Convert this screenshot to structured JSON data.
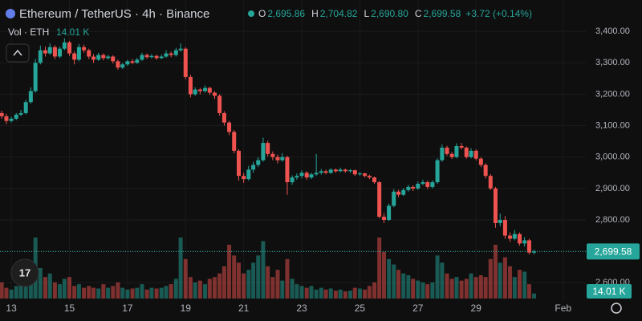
{
  "header": {
    "title": "Ethereum / TetherUS · 4h · Binance",
    "legend": [
      {
        "key": "O",
        "value": "2,695.86"
      },
      {
        "key": "H",
        "value": "2,704.82"
      },
      {
        "key": "L",
        "value": "2,690.80"
      },
      {
        "key": "C",
        "value": "2,699.58"
      }
    ],
    "change": "+3.72 (+0.14%)",
    "volume_title": "Vol · ETH",
    "volume_value": "14.01 K"
  },
  "chart_data": {
    "type": "candlestick",
    "up_color": "#26a69a",
    "down_color": "#ef5350",
    "grid": true,
    "xlim": [
      12.61,
      32.78
    ],
    "ylim": [
      2542,
      3500
    ],
    "xticks": [
      13,
      15,
      17,
      19,
      21,
      23,
      25,
      27,
      29,
      {
        "value": 32,
        "label": "Feb"
      }
    ],
    "yticks": [
      {
        "value": 2600,
        "label": "2,600.00"
      },
      {
        "value": 2700,
        "label": "2,700.00"
      },
      {
        "value": 2800,
        "label": "2,800.00"
      },
      {
        "value": 2900,
        "label": "2,900.00"
      },
      {
        "value": 3000,
        "label": "3,000.00"
      },
      {
        "value": 3100,
        "label": "3,100.00"
      },
      {
        "value": 3200,
        "label": "3,200.00"
      },
      {
        "value": 3300,
        "label": "3,300.00"
      },
      {
        "value": 3400,
        "label": "3,400.00"
      }
    ],
    "x": [
      12.67,
      12.83,
      13,
      13.17,
      13.33,
      13.5,
      13.67,
      13.83,
      14,
      14.17,
      14.33,
      14.5,
      14.67,
      14.83,
      15,
      15.17,
      15.33,
      15.5,
      15.67,
      15.83,
      16,
      16.17,
      16.33,
      16.5,
      16.67,
      16.83,
      17,
      17.17,
      17.33,
      17.5,
      17.67,
      17.83,
      18,
      18.17,
      18.33,
      18.5,
      18.67,
      18.83,
      19,
      19.17,
      19.33,
      19.5,
      19.67,
      19.83,
      20,
      20.17,
      20.33,
      20.5,
      20.67,
      20.83,
      21,
      21.17,
      21.33,
      21.5,
      21.67,
      21.83,
      22,
      22.17,
      22.33,
      22.5,
      22.67,
      22.83,
      23,
      23.17,
      23.33,
      23.5,
      23.67,
      23.83,
      24,
      24.17,
      24.33,
      24.5,
      24.67,
      24.83,
      25,
      25.17,
      25.33,
      25.5,
      25.67,
      25.83,
      26,
      26.17,
      26.33,
      26.5,
      26.67,
      26.83,
      27,
      27.17,
      27.33,
      27.5,
      27.67,
      27.83,
      28,
      28.17,
      28.33,
      28.5,
      28.67,
      28.83,
      29,
      29.17,
      29.33,
      29.5,
      29.67,
      29.83,
      30,
      30.17,
      30.33,
      30.5,
      30.67,
      30.83,
      31
    ],
    "candles": [
      [
        3140,
        3148,
        3122,
        3130
      ],
      [
        3130,
        3138,
        3105,
        3115
      ],
      [
        3115,
        3128,
        3110,
        3122
      ],
      [
        3122,
        3140,
        3118,
        3135
      ],
      [
        3135,
        3150,
        3130,
        3140
      ],
      [
        3140,
        3182,
        3136,
        3175
      ],
      [
        3175,
        3222,
        3170,
        3210
      ],
      [
        3210,
        3312,
        3205,
        3300
      ],
      [
        3300,
        3355,
        3295,
        3340
      ],
      [
        3340,
        3352,
        3320,
        3330
      ],
      [
        3330,
        3362,
        3325,
        3350
      ],
      [
        3350,
        3356,
        3312,
        3320
      ],
      [
        3320,
        3352,
        3315,
        3345
      ],
      [
        3345,
        3378,
        3340,
        3365
      ],
      [
        3365,
        3370,
        3322,
        3330
      ],
      [
        3330,
        3336,
        3295,
        3310
      ],
      [
        3310,
        3360,
        3305,
        3350
      ],
      [
        3350,
        3358,
        3332,
        3340
      ],
      [
        3340,
        3345,
        3312,
        3320
      ],
      [
        3320,
        3328,
        3300,
        3310
      ],
      [
        3310,
        3332,
        3306,
        3325
      ],
      [
        3325,
        3330,
        3308,
        3315
      ],
      [
        3315,
        3326,
        3310,
        3320
      ],
      [
        3320,
        3324,
        3298,
        3305
      ],
      [
        3305,
        3310,
        3278,
        3285
      ],
      [
        3285,
        3300,
        3280,
        3295
      ],
      [
        3295,
        3310,
        3290,
        3305
      ],
      [
        3305,
        3312,
        3296,
        3300
      ],
      [
        3300,
        3316,
        3297,
        3310
      ],
      [
        3310,
        3332,
        3306,
        3325
      ],
      [
        3325,
        3330,
        3312,
        3318
      ],
      [
        3318,
        3328,
        3314,
        3322
      ],
      [
        3322,
        3326,
        3310,
        3315
      ],
      [
        3315,
        3326,
        3312,
        3320
      ],
      [
        3320,
        3340,
        3316,
        3330
      ],
      [
        3330,
        3336,
        3318,
        3325
      ],
      [
        3325,
        3348,
        3320,
        3340
      ],
      [
        3340,
        3362,
        3335,
        3345
      ],
      [
        3345,
        3350,
        3248,
        3255
      ],
      [
        3255,
        3262,
        3190,
        3200
      ],
      [
        3200,
        3222,
        3195,
        3215
      ],
      [
        3215,
        3220,
        3200,
        3210
      ],
      [
        3210,
        3228,
        3205,
        3220
      ],
      [
        3220,
        3224,
        3198,
        3205
      ],
      [
        3205,
        3210,
        3185,
        3195
      ],
      [
        3195,
        3200,
        3132,
        3140
      ],
      [
        3140,
        3146,
        3100,
        3110
      ],
      [
        3110,
        3115,
        3070,
        3080
      ],
      [
        3080,
        3086,
        3012,
        3020
      ],
      [
        3020,
        3025,
        2925,
        2940
      ],
      [
        2940,
        2950,
        2918,
        2930
      ],
      [
        2930,
        2972,
        2925,
        2960
      ],
      [
        2960,
        2985,
        2950,
        2975
      ],
      [
        2975,
        3000,
        2968,
        2990
      ],
      [
        2990,
        3062,
        2985,
        3045
      ],
      [
        3045,
        3052,
        3002,
        3010
      ],
      [
        3010,
        3018,
        2990,
        3000
      ],
      [
        3000,
        3008,
        2980,
        2990
      ],
      [
        2990,
        3012,
        2985,
        3000
      ],
      [
        3000,
        3004,
        2880,
        2920
      ],
      [
        2920,
        2942,
        2912,
        2935
      ],
      [
        2935,
        2948,
        2928,
        2940
      ],
      [
        2940,
        2958,
        2932,
        2950
      ],
      [
        2950,
        2955,
        2928,
        2935
      ],
      [
        2935,
        2950,
        2930,
        2945
      ],
      [
        2945,
        3010,
        2940,
        2950
      ],
      [
        2950,
        2962,
        2944,
        2955
      ],
      [
        2955,
        2960,
        2945,
        2950
      ],
      [
        2950,
        2965,
        2946,
        2960
      ],
      [
        2960,
        2964,
        2950,
        2955
      ],
      [
        2955,
        2966,
        2952,
        2960
      ],
      [
        2960,
        2963,
        2950,
        2955
      ],
      [
        2955,
        2962,
        2950,
        2958
      ],
      [
        2958,
        2960,
        2940,
        2945
      ],
      [
        2945,
        2952,
        2940,
        2948
      ],
      [
        2948,
        2950,
        2935,
        2940
      ],
      [
        2940,
        2944,
        2930,
        2935
      ],
      [
        2935,
        2938,
        2915,
        2920
      ],
      [
        2920,
        2924,
        2805,
        2810
      ],
      [
        2810,
        2822,
        2790,
        2800
      ],
      [
        2800,
        2852,
        2796,
        2845
      ],
      [
        2845,
        2898,
        2840,
        2890
      ],
      [
        2890,
        2896,
        2872,
        2880
      ],
      [
        2880,
        2902,
        2876,
        2895
      ],
      [
        2895,
        2912,
        2890,
        2905
      ],
      [
        2905,
        2910,
        2892,
        2900
      ],
      [
        2900,
        2922,
        2896,
        2915
      ],
      [
        2915,
        2928,
        2910,
        2920
      ],
      [
        2920,
        2925,
        2898,
        2905
      ],
      [
        2905,
        2926,
        2900,
        2920
      ],
      [
        2920,
        2996,
        2915,
        2990
      ],
      [
        2990,
        3040,
        2985,
        3030
      ],
      [
        3030,
        3036,
        3004,
        3010
      ],
      [
        3010,
        3016,
        2994,
        3000
      ],
      [
        3000,
        3044,
        2996,
        3035
      ],
      [
        3035,
        3045,
        3024,
        3030
      ],
      [
        3030,
        3034,
        2995,
        3000
      ],
      [
        3000,
        3028,
        2996,
        3020
      ],
      [
        3020,
        3025,
        2990,
        2995
      ],
      [
        2995,
        3000,
        2968,
        2975
      ],
      [
        2975,
        2980,
        2932,
        2940
      ],
      [
        2940,
        2946,
        2895,
        2900
      ],
      [
        2900,
        2905,
        2775,
        2790
      ],
      [
        2790,
        2820,
        2780,
        2800
      ],
      [
        2800,
        2812,
        2740,
        2750
      ],
      [
        2750,
        2760,
        2730,
        2740
      ],
      [
        2740,
        2768,
        2735,
        2755
      ],
      [
        2755,
        2760,
        2718,
        2725
      ],
      [
        2725,
        2745,
        2715,
        2735
      ],
      [
        2735,
        2740,
        2690,
        2695.86
      ],
      [
        2695.86,
        2704.82,
        2690.8,
        2699.58
      ]
    ],
    "volume": [
      45,
      30,
      25,
      35,
      40,
      55,
      90,
      170,
      85,
      60,
      70,
      45,
      40,
      55,
      60,
      35,
      40,
      30,
      35,
      30,
      28,
      40,
      30,
      35,
      45,
      30,
      25,
      28,
      30,
      40,
      25,
      30,
      28,
      30,
      35,
      40,
      55,
      170,
      110,
      60,
      45,
      50,
      40,
      55,
      60,
      70,
      90,
      150,
      120,
      100,
      70,
      80,
      100,
      120,
      160,
      90,
      60,
      80,
      50,
      110,
      55,
      40,
      35,
      30,
      35,
      25,
      30,
      25,
      28,
      22,
      25,
      20,
      22,
      30,
      28,
      25,
      35,
      45,
      170,
      130,
      110,
      95,
      80,
      70,
      65,
      55,
      50,
      45,
      40,
      45,
      120,
      100,
      70,
      55,
      60,
      50,
      55,
      70,
      60,
      65,
      60,
      110,
      150,
      100,
      115,
      90,
      60,
      80,
      75,
      40,
      14.01
    ]
  }
}
